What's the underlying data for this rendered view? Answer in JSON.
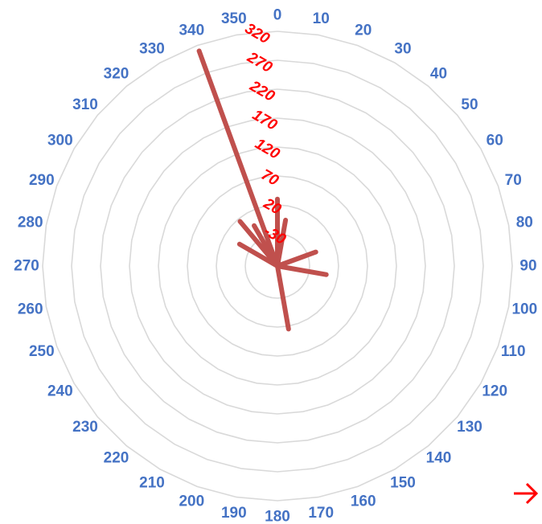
{
  "chart_data": {
    "type": "radar",
    "title": "",
    "angle_labels": [
      "0",
      "10",
      "20",
      "30",
      "40",
      "50",
      "60",
      "70",
      "80",
      "90",
      "100",
      "110",
      "120",
      "130",
      "140",
      "150",
      "160",
      "170",
      "180",
      "190",
      "200",
      "210",
      "220",
      "230",
      "240",
      "250",
      "260",
      "270",
      "280",
      "290",
      "300",
      "310",
      "320",
      "330",
      "340",
      "350"
    ],
    "radial_axis": {
      "min": -30,
      "max": 320,
      "ticks": [
        -30,
        20,
        70,
        120,
        170,
        220,
        270,
        320
      ],
      "tick_labels": [
        "-30",
        "20",
        "70",
        "120",
        "170",
        "220",
        "270",
        "320"
      ]
    },
    "series": [
      {
        "color": "#C0504D",
        "points": [
          {
            "angle": 340,
            "value": 310
          },
          {
            "angle": 0,
            "value": 30
          },
          {
            "angle": 10,
            "value": -5
          },
          {
            "angle": 70,
            "value": -15
          },
          {
            "angle": 100,
            "value": 0
          },
          {
            "angle": 170,
            "value": 25
          },
          {
            "angle": 330,
            "value": -5
          },
          {
            "angle": 320,
            "value": 15
          },
          {
            "angle": 300,
            "value": -10
          }
        ]
      }
    ],
    "gridline_color": "#D9D9D9",
    "angle_label_color": "#4472C4",
    "radial_label_color": "#FF0000"
  },
  "controls": {
    "next_arrow": "→",
    "next_arrow_color": "#FF0000"
  }
}
